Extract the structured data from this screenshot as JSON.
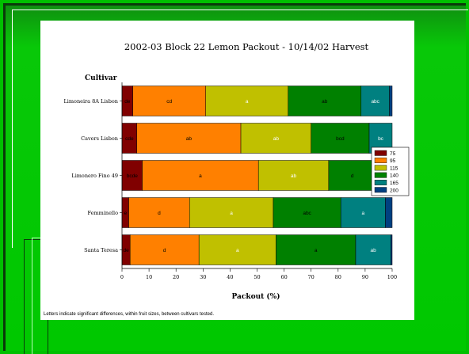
{
  "chart_data": {
    "type": "bar",
    "orientation": "horizontal",
    "stacked": true,
    "title": "2002-03 Block 22 Lemon Packout - 10/14/02 Harvest",
    "y_title": "Cultivar",
    "xlabel": "Packout (%)",
    "xlim": [
      0,
      100
    ],
    "x_ticks": [
      "0",
      "10",
      "20",
      "30",
      "40",
      "50",
      "60",
      "70",
      "80",
      "90",
      "100"
    ],
    "grid": false,
    "legend_position": "right",
    "categories": [
      "Limoneira 8A Lisbon",
      "Cavers Lisbon",
      "Limonero Fino 49",
      "Femminello",
      "Santa Teresa"
    ],
    "series": [
      {
        "name": "75",
        "color": "#800000",
        "values": [
          4,
          5.5,
          7.5,
          2.5,
          3
        ],
        "labels": [
          "de",
          "cde",
          "bcde",
          "e",
          "de"
        ]
      },
      {
        "name": "95",
        "color": "#ff8000",
        "values": [
          27,
          38.5,
          43,
          22.5,
          25.5
        ],
        "labels": [
          "cd",
          "ab",
          "a",
          "d",
          "d"
        ]
      },
      {
        "name": "115",
        "color": "#c0c000",
        "values": [
          30.5,
          26,
          26,
          31,
          28.5
        ],
        "labels": [
          "a",
          "ab",
          "ab",
          "a",
          "a"
        ]
      },
      {
        "name": "140",
        "color": "#008000",
        "values": [
          27,
          21.5,
          17.5,
          25,
          29.5
        ],
        "labels": [
          "ab",
          "bcd",
          "d",
          "abc",
          "a"
        ]
      },
      {
        "name": "165",
        "color": "#008080",
        "values": [
          10.5,
          8.5,
          4.5,
          16.5,
          13
        ],
        "labels": [
          "abc",
          "bc",
          "c",
          "a",
          "ab"
        ]
      },
      {
        "name": "200",
        "color": "#004080",
        "values": [
          1,
          0,
          1.5,
          2.5,
          0.5
        ],
        "labels": [
          "",
          "",
          "",
          "",
          ""
        ]
      }
    ],
    "footnote": "Letters indicate significant differences, within fruit sizes, between cultivars tested."
  }
}
